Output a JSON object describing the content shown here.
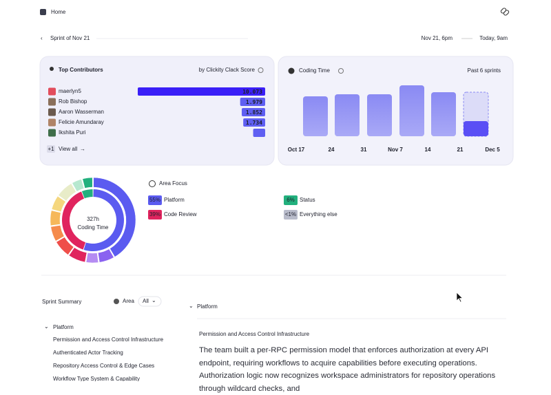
{
  "header": {
    "title": "Home"
  },
  "sprint": {
    "name": "Sprint of Nov 21",
    "start": "Nov 21, 6pm",
    "end": "Today, 9am"
  },
  "contributors": {
    "title": "Top Contributors",
    "subtitle": "by Clickity Clack Score",
    "rows": [
      {
        "name": "maerlyn5",
        "score": 10.073
      },
      {
        "name": "Rob Bishop",
        "score": 1.979
      },
      {
        "name": "Aaron Wasserman",
        "score": 1.852
      },
      {
        "name": "Felicie Amundaray",
        "score": 1.734
      },
      {
        "name": "Ikshita Puri",
        "bar": 0.95
      }
    ],
    "more": "+1",
    "view_all": "View all"
  },
  "coding_time": {
    "type": "bar",
    "title": "Coding Time",
    "range": "Past 6 sprints",
    "x_labels": [
      "Oct 17",
      "24",
      "31",
      "Nov 7",
      "14",
      "21",
      "Dec 5"
    ],
    "values": [
      58,
      61,
      61,
      74,
      64
    ],
    "current": {
      "projected": 64,
      "actual": 22
    }
  },
  "area_focus": {
    "type": "donut",
    "total": "327h",
    "total_label": "Coding Time",
    "title": "Area Focus",
    "areas": [
      {
        "name": "Platform",
        "share": {
          "value": 55,
          "label": "55%"
        },
        "color": "#5b5bf0"
      },
      {
        "name": "Code Review",
        "share": {
          "value": 39,
          "label": "39%"
        },
        "color": "#e0245e"
      },
      {
        "name": "Status",
        "share": {
          "value": 6,
          "label": "6%"
        },
        "color": "#22b07d"
      },
      {
        "name": "Everything else",
        "share": {
          "value": 0.5,
          "label": "<1%"
        },
        "color": "#b9bccb"
      }
    ]
  },
  "summary": {
    "title": "Sprint Summary",
    "filter_label": "Area",
    "filter_value": "All",
    "group": "Platform",
    "items": [
      "Permission and Access Control Infrastructure",
      "Authenticated Actor Tracking",
      "Repository Access Control & Edge Cases",
      "Workflow Type System & Capability"
    ],
    "detail": {
      "group": "Platform",
      "heading": "Permission and Access Control Infrastructure",
      "body": "The team built a per-RPC permission model that enforces authorization at every API endpoint, requiring workflows to acquire capabilities before executing operations. Authorization logic now recognizes workspace administrators for repository operations through wildcard checks, and"
    }
  }
}
